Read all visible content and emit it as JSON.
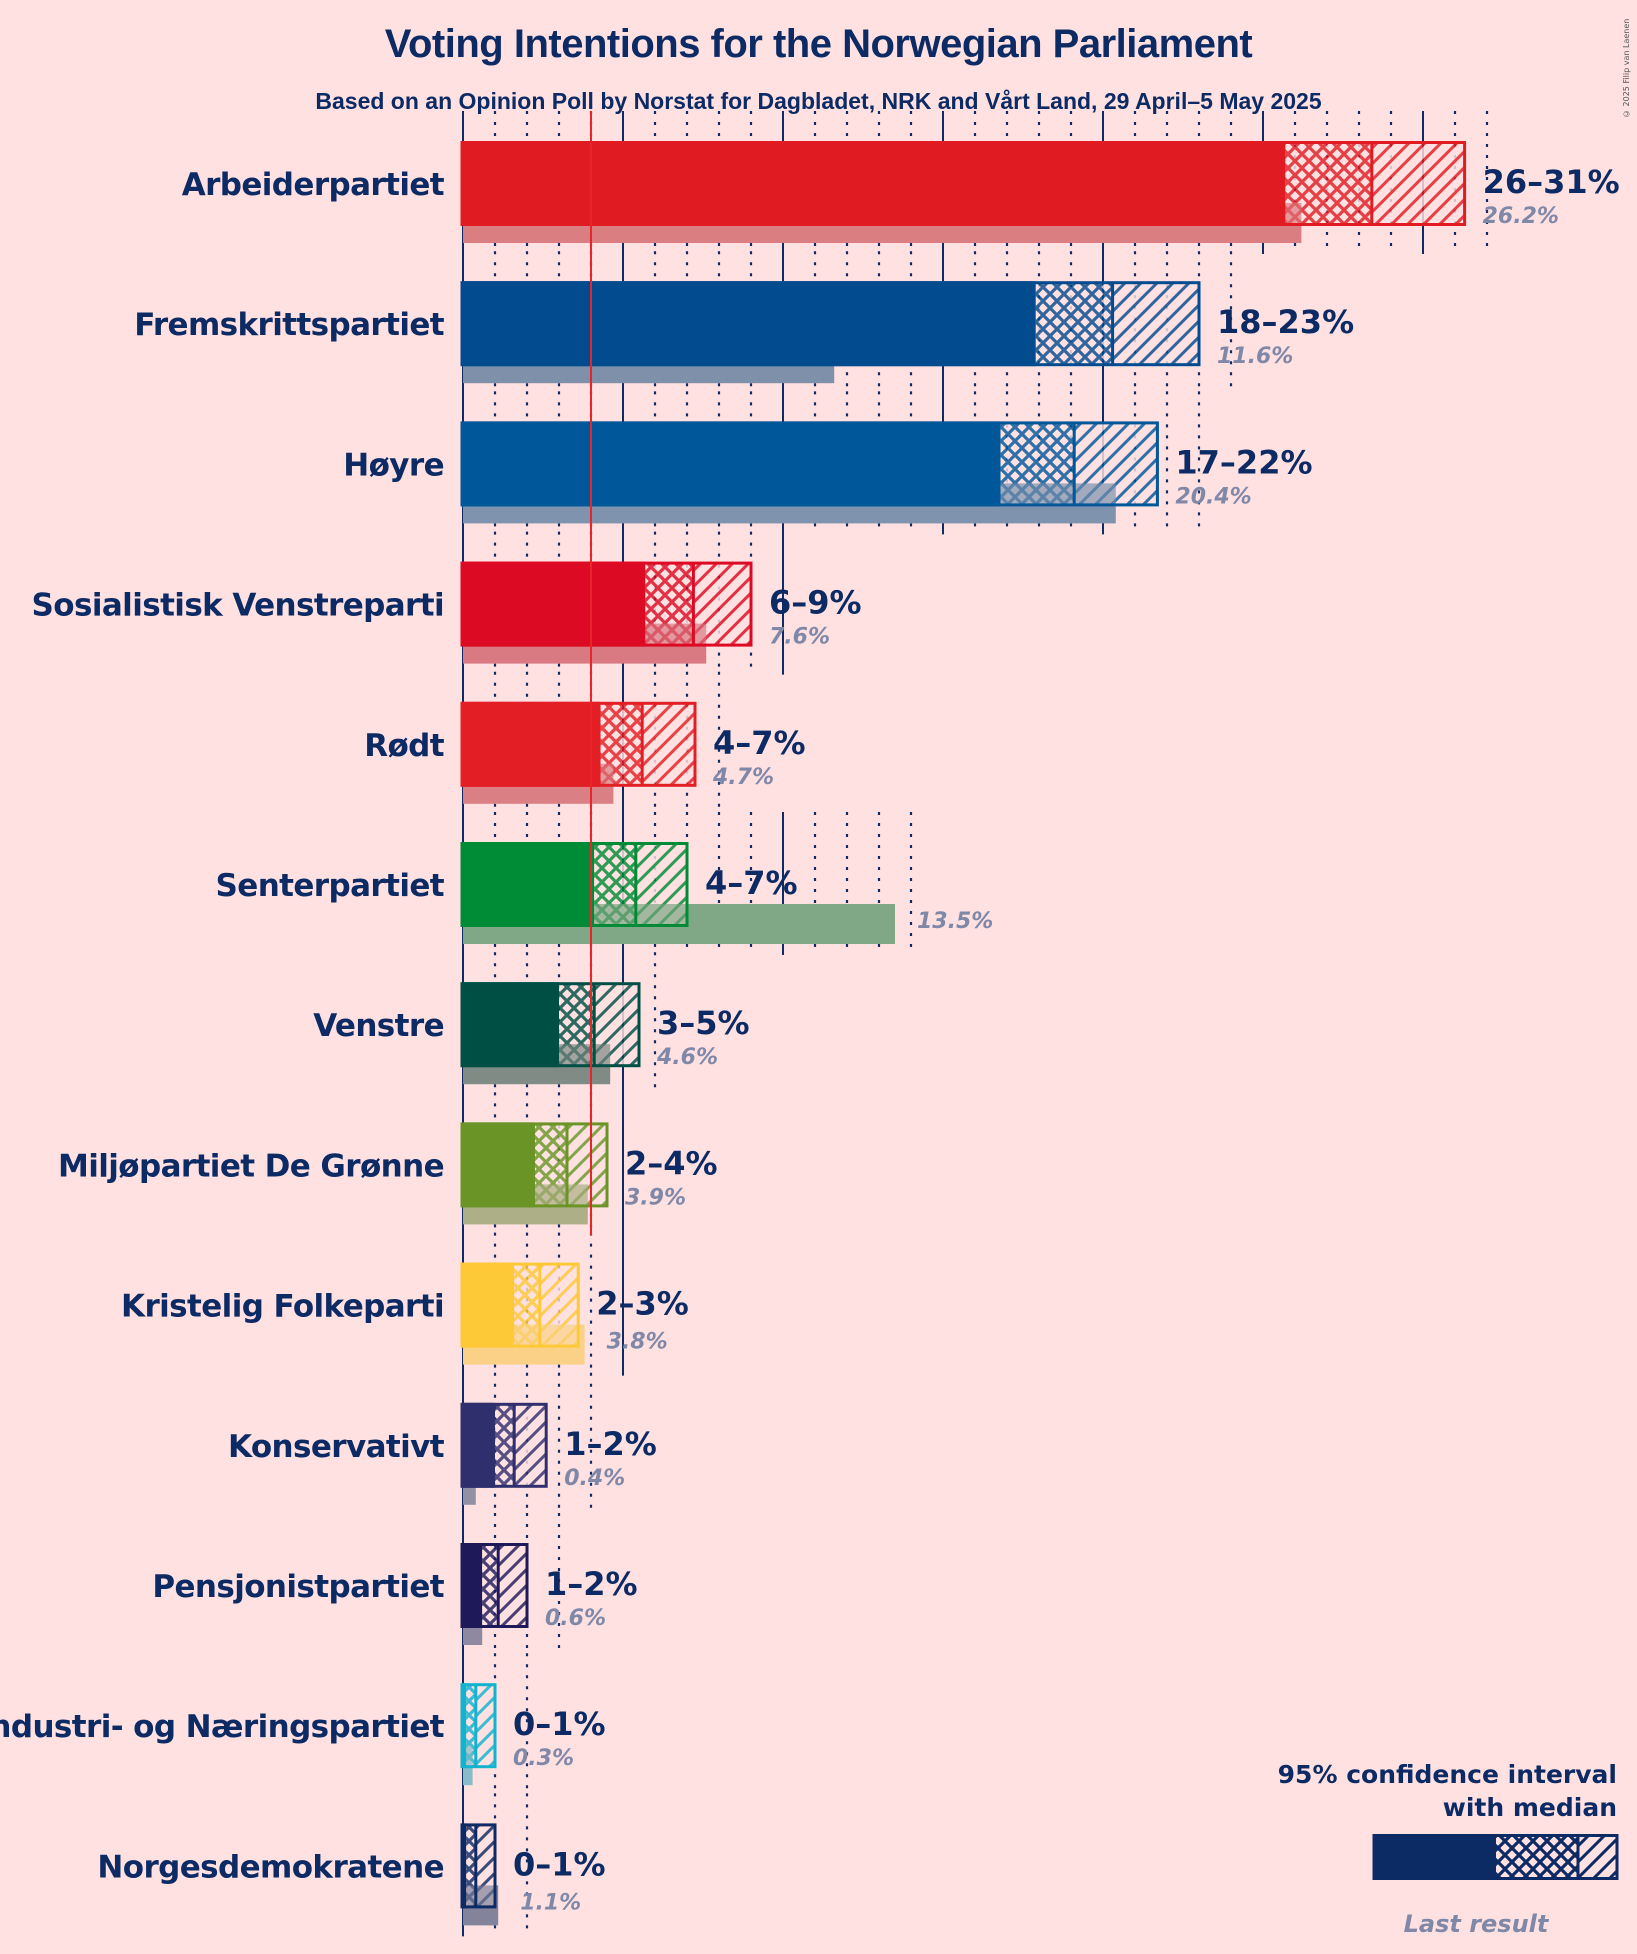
{
  "header": {
    "title": "Voting Intentions for the Norwegian Parliament",
    "subtitle": "Based on an Opinion Poll by Norstat for Dagbladet, NRK and Vårt Land, 29 April–5 May 2025",
    "copyright": "© 2025 Filip van Laenen"
  },
  "legend": {
    "line1": "95% confidence interval",
    "line2": "with median",
    "last_result": "Last result",
    "color": "#0c2a63",
    "last_color": "#80809a"
  },
  "chart_data": {
    "type": "bar",
    "orientation": "horizontal",
    "title": "Voting Intentions for the Norwegian Parliament",
    "subtitle": "Based on an Opinion Poll by Norstat for Dagbladet, NRK and Vårt Land, 29 April–5 May 2025",
    "xlabel": "",
    "ylabel": "",
    "unit": "%",
    "xlim": [
      0,
      31.5
    ],
    "major_gridlines_every": 5,
    "minor_gridlines_every": 1,
    "threshold": 4,
    "threshold_color": "#e8262a",
    "legend_position": "bottom-right",
    "categories": [
      "Arbeiderpartiet",
      "Fremskrittspartiet",
      "Høyre",
      "Sosialistisk Venstreparti",
      "Rødt",
      "Senterpartiet",
      "Venstre",
      "Miljøpartiet De Grønne",
      "Kristelig Folkeparti",
      "Konservativt",
      "Pensjonistpartiet",
      "Industri- og Næringspartiet",
      "Norgesdemokratene"
    ],
    "parties": [
      {
        "name": "Arbeiderpartiet",
        "range_label": "26–31%",
        "ci_low": 25.7,
        "median": 28.4,
        "ci_high": 31.3,
        "last_result": 26.2,
        "last_label": "26.2%",
        "color": "#e01b22",
        "last_color": "#db7e82"
      },
      {
        "name": "Fremskrittspartiet",
        "range_label": "18–23%",
        "ci_low": 17.9,
        "median": 20.3,
        "ci_high": 23.0,
        "last_result": 11.6,
        "last_label": "11.6%",
        "color": "#024b8e",
        "last_color": "#7f90ab"
      },
      {
        "name": "Høyre",
        "range_label": "17–22%",
        "ci_low": 16.8,
        "median": 19.1,
        "ci_high": 21.7,
        "last_result": 20.4,
        "last_label": "20.4%",
        "color": "#00579a",
        "last_color": "#7f93ae"
      },
      {
        "name": "Sosialistisk Venstreparti",
        "range_label": "6–9%",
        "ci_low": 5.7,
        "median": 7.2,
        "ci_high": 9.0,
        "last_result": 7.6,
        "last_label": "7.6%",
        "color": "#dc0a23",
        "last_color": "#d97a83"
      },
      {
        "name": "Rødt",
        "range_label": "4–7%",
        "ci_low": 4.3,
        "median": 5.6,
        "ci_high": 7.25,
        "last_result": 4.7,
        "last_label": "4.7%",
        "color": "#e31e24",
        "last_color": "#da8084"
      },
      {
        "name": "Senterpartiet",
        "range_label": "4–7%",
        "ci_low": 4.1,
        "median": 5.4,
        "ci_high": 7.0,
        "last_result": 13.5,
        "last_label": "13.5%",
        "color": "#008c36",
        "last_color": "#80a886"
      },
      {
        "name": "Venstre",
        "range_label": "3–5%",
        "ci_low": 3.0,
        "median": 4.1,
        "ci_high": 5.5,
        "last_result": 4.6,
        "last_label": "4.6%",
        "color": "#004f45",
        "last_color": "#808b86"
      },
      {
        "name": "Miljøpartiet De Grønne",
        "range_label": "2–4%",
        "ci_low": 2.25,
        "median": 3.25,
        "ci_high": 4.5,
        "last_result": 3.9,
        "last_label": "3.9%",
        "color": "#6a9526",
        "last_color": "#adaf86"
      },
      {
        "name": "Kristelig Folkeparti",
        "range_label": "2–3%",
        "ci_low": 1.6,
        "median": 2.4,
        "ci_high": 3.6,
        "last_result": 3.8,
        "last_label": "3.8%",
        "color": "#fec937",
        "last_color": "#fbd187"
      },
      {
        "name": "Konservativt",
        "range_label": "1–2%",
        "ci_low": 1.0,
        "median": 1.6,
        "ci_high": 2.6,
        "last_result": 0.4,
        "last_label": "0.4%",
        "color": "#2f2f6e",
        "last_color": "#9390a4"
      },
      {
        "name": "Pensjonistpartiet",
        "range_label": "1–2%",
        "ci_low": 0.6,
        "median": 1.1,
        "ci_high": 2.0,
        "last_result": 0.6,
        "last_label": "0.6%",
        "color": "#1e1a5a",
        "last_color": "#8e88a0"
      },
      {
        "name": "Industri- og Næringspartiet",
        "range_label": "0–1%",
        "ci_low": 0.1,
        "median": 0.4,
        "ci_high": 1.0,
        "last_result": 0.3,
        "last_label": "0.3%",
        "color": "#11b3cf",
        "last_color": "#88bcc8"
      },
      {
        "name": "Norgesdemokratene",
        "range_label": "0–1%",
        "ci_low": 0.1,
        "median": 0.4,
        "ci_high": 1.0,
        "last_result": 1.1,
        "last_label": "1.1%",
        "color": "#0c2a63",
        "last_color": "#83849c"
      }
    ]
  }
}
